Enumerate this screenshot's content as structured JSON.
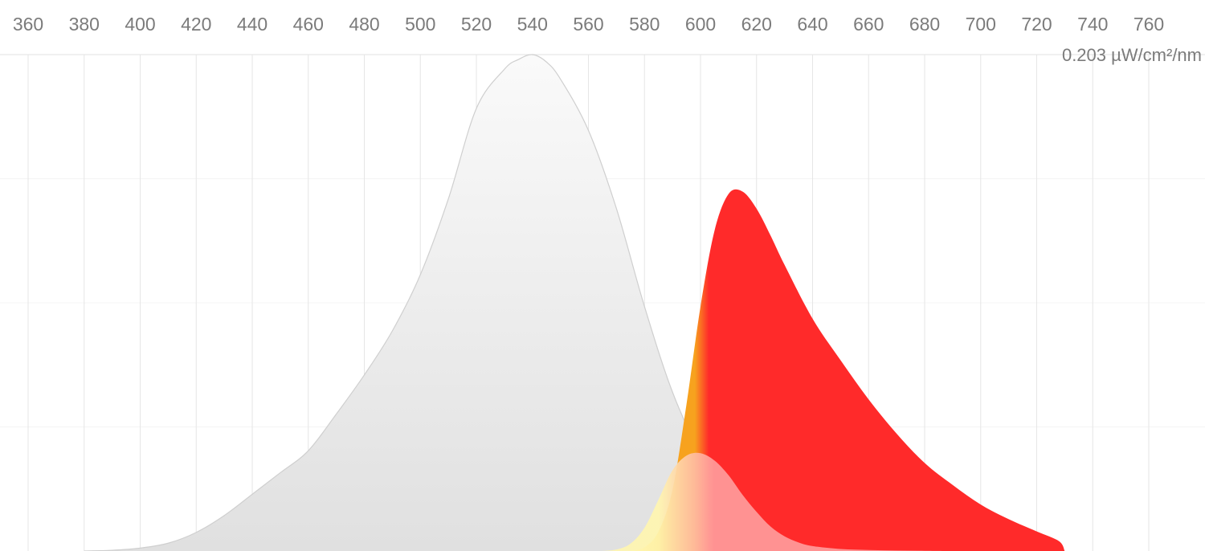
{
  "chart_data": {
    "type": "area",
    "title": "",
    "xlabel": "",
    "ylabel": "",
    "x_ticks": [
      360,
      380,
      400,
      420,
      440,
      460,
      480,
      500,
      520,
      540,
      560,
      580,
      600,
      620,
      640,
      660,
      680,
      700,
      720,
      740,
      760
    ],
    "xlim": [
      350,
      790
    ],
    "ylim": [
      0,
      0.203
    ],
    "y_max_label": "0.203 µW/cm²/nm",
    "grid": true,
    "colors": {
      "grid": "#e6e6e6",
      "tick_text": "#7b7b7b",
      "reference_fill_top": "#fafafa",
      "reference_fill_bottom": "#e0e0e0",
      "reference_stroke": "#cfcfcf",
      "spectrum_red": "#ff2a2a",
      "spectrum_orange": "#f7a21e",
      "spectrum_yellow": "#fff29a",
      "inner_pink": "#ff9b9b",
      "inner_yellow": "#fff6b0"
    },
    "series": [
      {
        "x": [
          380,
          390,
          400,
          410,
          420,
          430,
          440,
          450,
          460,
          470,
          480,
          490,
          500,
          510,
          520,
          530,
          535,
          540,
          545,
          550,
          560,
          570,
          580,
          590,
          600,
          610,
          620,
          630,
          640,
          650,
          660,
          670,
          680,
          690,
          700,
          710,
          720,
          729
        ],
        "values": [
          0.0,
          0.0003,
          0.0012,
          0.0032,
          0.0076,
          0.0145,
          0.0232,
          0.032,
          0.041,
          0.056,
          0.072,
          0.09,
          0.113,
          0.144,
          0.181,
          0.197,
          0.201,
          0.203,
          0.2,
          0.193,
          0.172,
          0.14,
          0.1,
          0.065,
          0.04,
          0.023,
          0.012,
          0.0065,
          0.0034,
          0.0018,
          0.001,
          0.0006,
          0.0004,
          0.0002,
          0.0001,
          0.0001,
          0.0,
          0.0
        ]
      },
      {
        "x": [
          575,
          580,
          585,
          590,
          595,
          600,
          605,
          610,
          615,
          620,
          625,
          630,
          640,
          650,
          660,
          670,
          680,
          690,
          700,
          710,
          720,
          728,
          730
        ],
        "values": [
          0.0,
          0.0015,
          0.008,
          0.025,
          0.06,
          0.1,
          0.131,
          0.146,
          0.147,
          0.14,
          0.129,
          0.117,
          0.095,
          0.078,
          0.062,
          0.048,
          0.036,
          0.027,
          0.019,
          0.013,
          0.008,
          0.004,
          0.0
        ]
      },
      {
        "x": [
          565,
          570,
          575,
          580,
          585,
          590,
          595,
          600,
          605,
          610,
          615,
          620,
          625,
          630,
          635,
          640,
          650,
          660,
          670,
          680,
          690
        ],
        "values": [
          0.0,
          0.0006,
          0.003,
          0.0095,
          0.021,
          0.033,
          0.039,
          0.04,
          0.037,
          0.031,
          0.023,
          0.016,
          0.01,
          0.006,
          0.0035,
          0.002,
          0.0008,
          0.0004,
          0.0002,
          0.0001,
          0.0
        ]
      }
    ]
  }
}
